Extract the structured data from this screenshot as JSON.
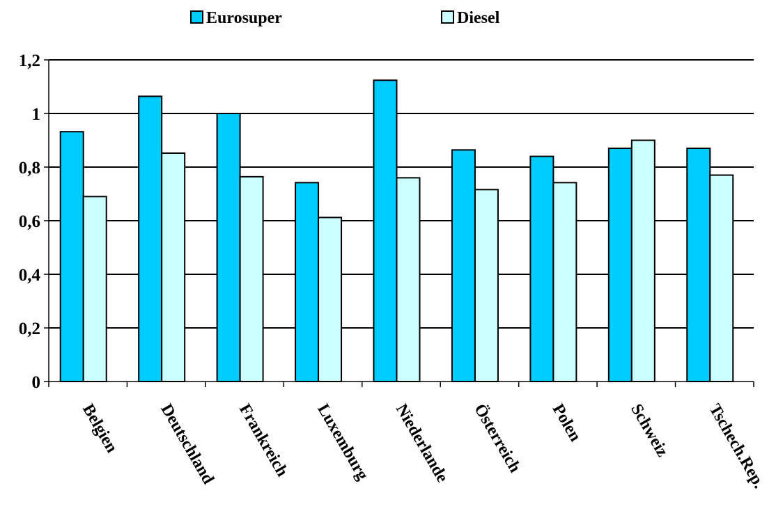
{
  "chart_data": {
    "type": "bar",
    "categories": [
      "Belgien",
      "Deutschland",
      "Frankreich",
      "Luxemburg",
      "Niederlande",
      "Österreich",
      "Polen",
      "Schweiz",
      "Tschech.Rep."
    ],
    "series": [
      {
        "name": "Eurosuper",
        "color": "#00CCFF",
        "values": [
          0.932,
          1.064,
          1.0,
          0.742,
          1.124,
          0.864,
          0.84,
          0.87,
          0.87
        ]
      },
      {
        "name": "Diesel",
        "color": "#CCFFFF",
        "values": [
          0.69,
          0.852,
          0.764,
          0.612,
          0.76,
          0.716,
          0.742,
          0.9,
          0.77
        ]
      }
    ],
    "yticks": [
      "0",
      "0,2",
      "0,4",
      "0,6",
      "0,8",
      "1",
      "1,2"
    ],
    "ytick_values": [
      0,
      0.2,
      0.4,
      0.6,
      0.8,
      1.0,
      1.2
    ],
    "ylim": [
      0,
      1.2
    ],
    "grid": true,
    "legend_position": "top-center",
    "title": "",
    "xlabel": "",
    "ylabel": ""
  }
}
